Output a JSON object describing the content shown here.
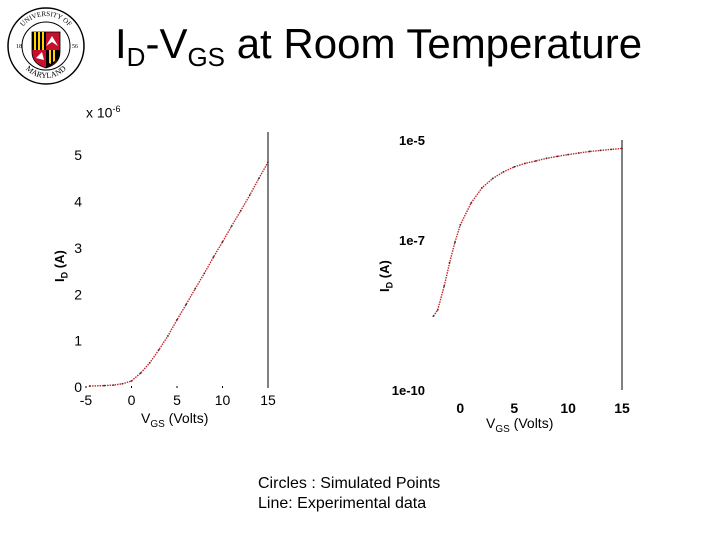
{
  "slide": {
    "title_main": "I",
    "title_sub1": "D",
    "title_mid": "-V",
    "title_sub2": "GS",
    "title_rest": " at Room Temperature",
    "caption_line1": "Circles : Simulated Points",
    "caption_line2": "Line: Experimental data"
  },
  "logo": {
    "text_top": "UNIVERSITY OF",
    "text_bottom": "MARYLAND",
    "year_left": "18",
    "year_right": "56",
    "colors": {
      "red": "#c8102e",
      "gold": "#ffd200",
      "black": "#000000",
      "white": "#ffffff"
    }
  },
  "chart_data": [
    {
      "type": "line",
      "y_multiplier_base": "x 10",
      "y_multiplier_exp": "-6",
      "xlabel_main": "V",
      "xlabel_sub": "GS",
      "xlabel_unit": " (Volts)",
      "ylabel_main": "I",
      "ylabel_sub": "D",
      "ylabel_unit": " (A)",
      "xlim": [
        -5,
        15
      ],
      "ylim": [
        0,
        5.5
      ],
      "xticks": [
        "-5",
        "0",
        "5",
        "10",
        "15"
      ],
      "yticks": [
        "0",
        "1",
        "2",
        "3",
        "4",
        "5"
      ],
      "line_color": "#c0282d",
      "series": [
        {
          "x": [
            -4.6,
            -3,
            -2,
            -1,
            0,
            1,
            2,
            3,
            4,
            5,
            6,
            7,
            8,
            9,
            10,
            11,
            12,
            13,
            14,
            15
          ],
          "y": [
            0.02,
            0.03,
            0.04,
            0.07,
            0.13,
            0.3,
            0.52,
            0.8,
            1.1,
            1.45,
            1.78,
            2.12,
            2.45,
            2.8,
            3.13,
            3.47,
            3.8,
            4.14,
            4.5,
            4.85
          ]
        }
      ]
    },
    {
      "type": "line",
      "yscale": "log",
      "xlabel_main": "V",
      "xlabel_sub": "GS",
      "xlabel_unit": " (Volts)",
      "ylabel_main": "I",
      "ylabel_sub": "D",
      "ylabel_unit": " (A)",
      "xlim": [
        -3,
        15
      ],
      "ylim": [
        1e-10,
        1e-05
      ],
      "xticks": [
        "0",
        "5",
        "10",
        "15"
      ],
      "yticks": [
        "1e-5",
        "1e-7",
        "1e-10"
      ],
      "line_color": "#c0282d",
      "series": [
        {
          "x": [
            -2.5,
            -2.1,
            -1.5,
            -1,
            -0.5,
            0,
            1,
            2,
            3,
            4,
            5,
            6,
            7,
            8,
            9,
            10,
            11,
            12,
            13,
            14,
            15
          ],
          "y": [
            3e-09,
            4e-09,
            1.2e-08,
            3.5e-08,
            9e-08,
            2e-07,
            5.5e-07,
            1.1e-06,
            1.7e-06,
            2.3e-06,
            2.9e-06,
            3.4e-06,
            3.8e-06,
            4.3e-06,
            4.7e-06,
            5.1e-06,
            5.5e-06,
            5.9e-06,
            6.2e-06,
            6.5e-06,
            6.8e-06
          ]
        }
      ]
    }
  ]
}
